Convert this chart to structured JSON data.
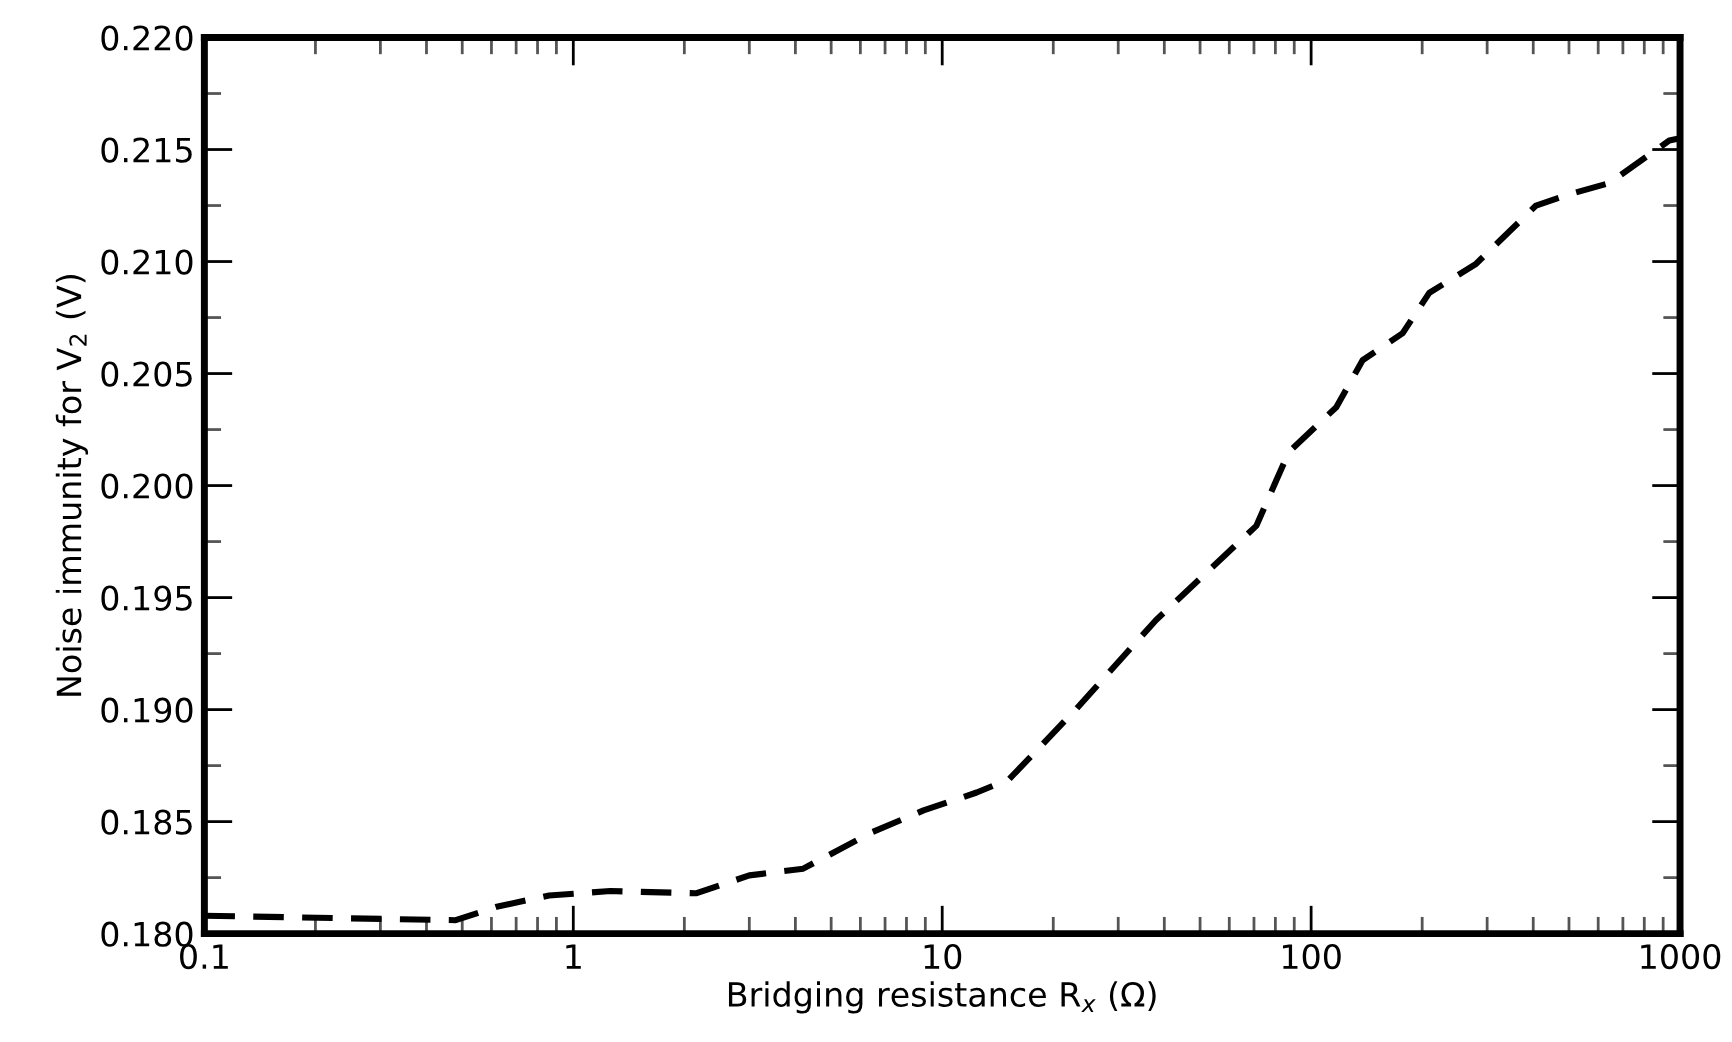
{
  "chart_data": {
    "type": "line",
    "xlabel": "Bridging resistance R$_{x}$ (Ω)",
    "ylabel": "Noise immunity for V$_{2}$ (V)",
    "log": "x",
    "grid": false,
    "line_style": "dashed",
    "marker": "none",
    "xlim": [
      0.1,
      1000
    ],
    "xticks": [
      0.1,
      1,
      10,
      100,
      1000
    ],
    "ylim": [
      0.18,
      0.22
    ],
    "yticks": [
      {
        "value": 0.18,
        "label": "0.180"
      },
      {
        "value": 0.185,
        "label": "0.185"
      },
      {
        "value": 0.19,
        "label": "0.190"
      },
      {
        "value": 0.195,
        "label": "0.195"
      },
      {
        "value": 0.2,
        "label": "0.200"
      },
      {
        "value": 0.205,
        "label": "0.205"
      },
      {
        "value": 0.21,
        "label": "0.210"
      },
      {
        "value": 0.215,
        "label": "0.215"
      },
      {
        "value": 0.22,
        "label": "0.220"
      }
    ],
    "series": [
      {
        "color": "#000000",
        "x": [
          0.1,
          0.48,
          0.62,
          0.86,
          1.26,
          2.15,
          3.0,
          4.2,
          6.4,
          8.9,
          12.4,
          15.2,
          23,
          38,
          71,
          87,
          117,
          138,
          177,
          209,
          280,
          407,
          501,
          643,
          935,
          1000
        ],
        "values": [
          0.1808,
          0.1806,
          0.1812,
          0.1817,
          0.1819,
          0.1818,
          0.1826,
          0.1829,
          0.1845,
          0.1855,
          0.1863,
          0.1869,
          0.19,
          0.194,
          0.1982,
          0.2015,
          0.2035,
          0.2056,
          0.2068,
          0.2086,
          0.2099,
          0.2125,
          0.213,
          0.2135,
          0.2154,
          0.2155
        ]
      }
    ]
  }
}
